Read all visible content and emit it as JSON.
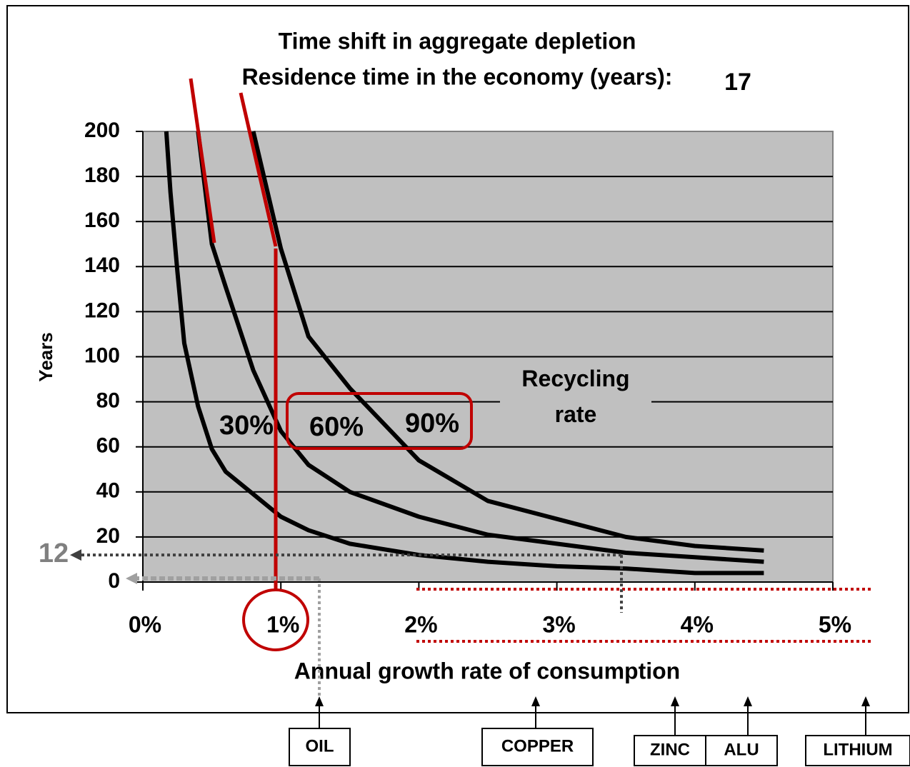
{
  "chart_data": {
    "type": "line",
    "title": "Time shift in aggregate depletion",
    "subtitle": "Residence time in the economy (years):",
    "subtitle_value": "17",
    "x_label": "Annual growth rate of consumption",
    "y_label": "Years",
    "legend_title": "Recycling rate",
    "series": [
      {
        "name": "30%",
        "color": "#000000",
        "x": [
          0.17,
          0.2,
          0.25,
          0.3,
          0.4,
          0.5,
          0.6,
          0.8,
          1,
          1.2,
          1.5,
          2,
          2.5,
          3,
          3.5,
          4,
          4.5
        ],
        "values": [
          200,
          173,
          138,
          106,
          78,
          59,
          49,
          39,
          29,
          23,
          17,
          12,
          9,
          7,
          6,
          4,
          4
        ]
      },
      {
        "name": "60%",
        "color": "#000000",
        "x": [
          0.4,
          0.5,
          0.6,
          0.8,
          1,
          1.2,
          1.5,
          2,
          2.5,
          3,
          3.5,
          4,
          4.5
        ],
        "values": [
          200,
          150,
          131,
          94,
          67,
          52,
          40,
          29,
          21,
          17,
          13,
          11,
          9
        ]
      },
      {
        "name": "90%",
        "color": "#000000",
        "x": [
          0.8,
          1,
          1.2,
          1.5,
          2,
          2.5,
          3,
          3.5,
          4,
          4.5
        ],
        "values": [
          200,
          148,
          109,
          86,
          54,
          36,
          28,
          20,
          16,
          14
        ]
      }
    ],
    "xlim": [
      0,
      5
    ],
    "xticks": [
      {
        "value": 0,
        "label": "0%"
      },
      {
        "value": 1,
        "label": "1%"
      },
      {
        "value": 2,
        "label": "2%"
      },
      {
        "value": 3,
        "label": "3%"
      },
      {
        "value": 4,
        "label": "4%"
      },
      {
        "value": 5,
        "label": "5%"
      }
    ],
    "ylim": [
      0,
      200
    ],
    "yticks": [
      0,
      20,
      40,
      60,
      80,
      100,
      120,
      140,
      160,
      180,
      200
    ],
    "grid": true,
    "annotations": [
      {
        "label": "12",
        "value": 12
      }
    ],
    "commodities": [
      "OIL",
      "COPPER",
      "ZINC",
      "ALU",
      "LITHIUM"
    ]
  }
}
